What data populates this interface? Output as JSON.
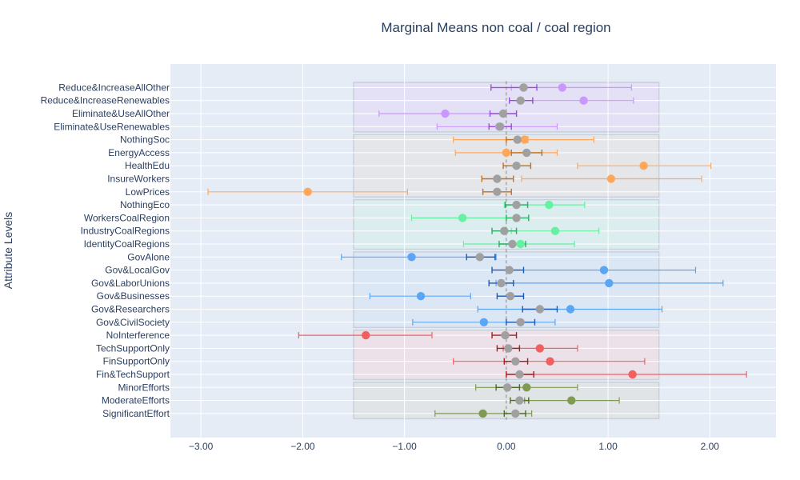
{
  "chart_data": {
    "type": "scatter",
    "title": "Marginal Means non coal / coal region",
    "xlabel": "",
    "ylabel": "Attribute Levels",
    "xlim": [
      -3.3,
      2.65
    ],
    "x_ticks": [
      -3,
      -2,
      -1,
      0,
      1,
      2
    ],
    "x_tick_labels": [
      "−3.00",
      "−2.00",
      "−1.00",
      "0.00",
      "1.00",
      "2.00"
    ],
    "grid": true,
    "legend": "none",
    "colors": {
      "plot_bg": "#E5ECF6",
      "grid": "#ffffff",
      "text": "#2a3f5f",
      "coal_point": "#A0A0A0",
      "zero_line": "#888888"
    },
    "levels": [
      "Reduce&IncreaseAllOther",
      "Reduce&IncreaseRenewables",
      "Eliminate&UseAllOther",
      "Eliminate&UseRenewables",
      "NothingSoc",
      "EnergyAccess",
      "HealthEdu",
      "InsureWorkers",
      "LowPrices",
      "NothingEco",
      "WorkersCoalRegion",
      "IndustryCoalRegions",
      "IdentityCoalRegions",
      "GovAlone",
      "Gov&LocalGov",
      "Gov&LaborUnions",
      "Gov&Businesses",
      "Gov&Researchers",
      "Gov&CivilSociety",
      "NoInterference",
      "TechSupportOnly",
      "FinSupportOnly",
      "Fin&TechSupport",
      "MinorEfforts",
      "ModerateEfforts",
      "SignificantEffort"
    ],
    "attribute_groups": [
      {
        "first": 0,
        "last": 3,
        "band_color": "#E3DDF5",
        "point_color": "#CC96FF",
        "bar_color": "#9B4DDB"
      },
      {
        "first": 4,
        "last": 8,
        "band_color": "#E4E4E4",
        "point_color": "#FFA85C",
        "bar_color": "#C0701E"
      },
      {
        "first": 9,
        "last": 12,
        "band_color": "#D8EEEC",
        "point_color": "#66F0A2",
        "bar_color": "#2AAE62"
      },
      {
        "first": 13,
        "last": 18,
        "band_color": "#D8E6F6",
        "point_color": "#5AA6F5",
        "bar_color": "#1A5BB5"
      },
      {
        "first": 19,
        "last": 22,
        "band_color": "#EDDEE4",
        "point_color": "#F25F5F",
        "bar_color": "#A81C1C"
      },
      {
        "first": 23,
        "last": 25,
        "band_color": "#DDE2E2",
        "point_color": "#7F9A52",
        "bar_color": "#4C6A2A"
      }
    ],
    "series": [
      {
        "kind": "non_coal_region",
        "values": [
          0.55,
          0.76,
          -0.6,
          -0.07,
          0.18,
          0.0,
          1.35,
          1.03,
          -1.95,
          0.42,
          -0.43,
          0.48,
          0.14,
          -0.93,
          0.96,
          1.01,
          -0.84,
          0.63,
          -0.22,
          -1.38,
          0.33,
          0.43,
          1.24,
          0.2,
          0.64,
          -0.23
        ],
        "err_low": [
          0.05,
          0.26,
          -1.25,
          -0.68,
          -0.52,
          -0.5,
          0.7,
          0.15,
          -2.93,
          -0.02,
          -0.93,
          0.05,
          -0.42,
          -1.62,
          0.05,
          -0.1,
          -1.34,
          -0.28,
          -0.92,
          -2.04,
          -0.03,
          -0.52,
          0.12,
          -0.3,
          0.18,
          -0.7
        ],
        "err_high": [
          1.23,
          1.25,
          0.1,
          0.5,
          0.86,
          0.5,
          2.01,
          1.92,
          -0.97,
          0.77,
          0.0,
          0.91,
          0.67,
          -0.1,
          1.86,
          2.13,
          -0.35,
          1.53,
          0.48,
          -0.73,
          0.7,
          1.36,
          2.36,
          0.7,
          1.11,
          0.25
        ]
      },
      {
        "kind": "coal_region",
        "values": [
          0.17,
          0.14,
          -0.03,
          -0.06,
          0.11,
          0.2,
          0.1,
          -0.09,
          -0.09,
          0.1,
          0.1,
          -0.02,
          0.06,
          -0.26,
          0.03,
          -0.05,
          0.04,
          0.33,
          0.14,
          -0.01,
          0.02,
          0.09,
          0.13,
          0.01,
          0.13,
          0.09
        ],
        "err_low": [
          -0.15,
          0.03,
          -0.16,
          -0.17,
          0.0,
          0.05,
          -0.03,
          -0.24,
          -0.23,
          -0.01,
          0.0,
          -0.14,
          -0.07,
          -0.39,
          -0.14,
          -0.17,
          -0.09,
          0.16,
          0.0,
          -0.14,
          -0.09,
          -0.02,
          0.0,
          -0.1,
          0.04,
          -0.02
        ],
        "err_high": [
          0.3,
          0.26,
          0.1,
          0.05,
          0.21,
          0.35,
          0.24,
          0.07,
          0.05,
          0.21,
          0.22,
          0.1,
          0.19,
          -0.11,
          0.17,
          0.07,
          0.17,
          0.5,
          0.28,
          0.1,
          0.13,
          0.21,
          0.27,
          0.13,
          0.22,
          0.19
        ]
      }
    ]
  }
}
